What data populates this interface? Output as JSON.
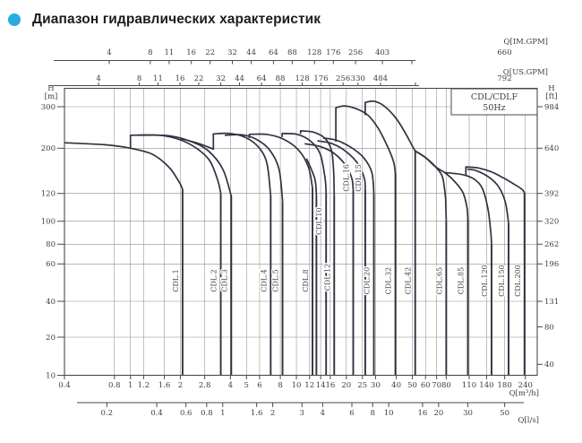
{
  "header": {
    "title": "Диапазон гидравлических характеристик",
    "bullet_color": "#29abe2"
  },
  "chart_data": {
    "type": "area",
    "title": "CDL/CDLF 50Hz",
    "legend_box": {
      "line1": "CDL/CDLF",
      "line2": "50Hz"
    },
    "axes": {
      "left": {
        "name": "H",
        "unit": "[m]",
        "ticks": [
          300,
          200,
          120,
          100,
          80,
          60,
          40,
          20,
          10
        ],
        "range": [
          10,
          350
        ],
        "scale": "log-piecewise"
      },
      "right": {
        "name": "H",
        "unit": "[ft]",
        "ticks": [
          {
            "v": 984,
            "at_m": 300
          },
          {
            "v": 640,
            "at_m": 200
          },
          {
            "v": 392,
            "at_m": 120
          },
          {
            "v": 320,
            "at_m": 100
          },
          {
            "v": 262,
            "at_m": 80
          },
          {
            "v": 196,
            "at_m": 60
          },
          {
            "v": 131,
            "at_m": 40
          },
          {
            "v": 80,
            "at_m": 24.4
          },
          {
            "v": 40,
            "at_m": 12.2
          }
        ]
      },
      "bottom_m3h": {
        "label": "Q[m³/h]",
        "range": [
          0.4,
          282
        ],
        "scale": "log",
        "ticks": [
          0.4,
          0.8,
          1,
          1.2,
          1.6,
          2,
          2.8,
          4,
          5,
          6,
          8,
          10,
          12,
          14,
          16,
          20,
          25,
          30,
          40,
          50,
          60,
          70,
          80,
          110,
          140,
          180,
          240
        ]
      },
      "bottom_ls": {
        "label": "Q[l/s]",
        "ticks": [
          0.2,
          0.4,
          0.6,
          0.8,
          1,
          1.6,
          2,
          3,
          4,
          6,
          8,
          10,
          16,
          20,
          30,
          50
        ]
      },
      "top_im_gpm": {
        "label": "Q[IM.GPM]",
        "ticks": [
          4,
          8,
          11,
          16,
          22,
          32,
          44,
          64,
          88,
          128,
          176,
          256,
          403
        ],
        "end_value": 660
      },
      "top_us_gpm": {
        "label": "Q[US.GPM]",
        "ticks": [
          4,
          8,
          11,
          16,
          22,
          32,
          44,
          64,
          88,
          128,
          176,
          256,
          330,
          484
        ],
        "end_value": 792
      }
    },
    "models": [
      {
        "label": "CDL.1",
        "q_max": 2.06,
        "label_h": 50,
        "envelope": [
          [
            0.4,
            211
          ],
          [
            0.7,
            207
          ],
          [
            1.0,
            200
          ],
          [
            1.35,
            187
          ],
          [
            1.7,
            162
          ],
          [
            1.95,
            138
          ],
          [
            2.06,
            126
          ]
        ]
      },
      {
        "label": "CDL.2",
        "q_max": 3.5,
        "label_h": 50,
        "envelope": [
          [
            1.0,
            200
          ],
          [
            1.0,
            227
          ],
          [
            1.5,
            227
          ],
          [
            2.0,
            217
          ],
          [
            2.5,
            200
          ],
          [
            3.0,
            174
          ],
          [
            3.35,
            140
          ],
          [
            3.5,
            120
          ]
        ]
      },
      {
        "label": "CDL.3",
        "q_max": 4.05,
        "label_h": 50,
        "envelope": [
          [
            1.1,
            227
          ],
          [
            1.7,
            226
          ],
          [
            2.3,
            214
          ],
          [
            2.95,
            194
          ],
          [
            3.6,
            158
          ],
          [
            4.05,
            118
          ]
        ]
      },
      {
        "label": "CDL.4",
        "q_max": 7.0,
        "label_h": 50,
        "envelope": [
          [
            2.0,
            220
          ],
          [
            2.6,
            209
          ],
          [
            3.16,
            198
          ],
          [
            3.16,
            230
          ],
          [
            3.95,
            231
          ],
          [
            4.95,
            222
          ],
          [
            5.95,
            201
          ],
          [
            6.65,
            168
          ],
          [
            7.0,
            118
          ]
        ]
      },
      {
        "label": "CDL.5",
        "q_max": 8.25,
        "label_h": 50,
        "envelope": [
          [
            3.7,
            227
          ],
          [
            4.7,
            228
          ],
          [
            5.75,
            218
          ],
          [
            6.9,
            196
          ],
          [
            7.85,
            158
          ],
          [
            8.25,
            114
          ]
        ]
      },
      {
        "label": "CDL.8",
        "q_max": 12.5,
        "label_h": 50,
        "envelope": [
          [
            5.2,
            221
          ],
          [
            5.2,
            229
          ],
          [
            6.6,
            229
          ],
          [
            8.3,
            219
          ],
          [
            10.3,
            196
          ],
          [
            11.8,
            162
          ],
          [
            12.5,
            128
          ]
        ]
      },
      {
        "label": "CDL.10",
        "q_max": 15.1,
        "label_h": 100,
        "envelope": [
          [
            8.2,
            223
          ],
          [
            8.2,
            231
          ],
          [
            10.1,
            229
          ],
          [
            12.1,
            215
          ],
          [
            13.9,
            188
          ],
          [
            14.9,
            142
          ],
          [
            15.1,
            120
          ]
        ]
      },
      {
        "label": "CDL.12",
        "q_max": 16.9,
        "label_h": 52,
        "envelope": [
          [
            10.6,
            230
          ],
          [
            10.6,
            237
          ],
          [
            12.7,
            234
          ],
          [
            14.9,
            220
          ],
          [
            16.3,
            194
          ],
          [
            16.8,
            150
          ],
          [
            16.9,
            118
          ]
        ]
      },
      {
        "label": "CDL.16",
        "q_max": 22,
        "label_h": 143,
        "envelope": [
          [
            11.2,
            209
          ],
          [
            14,
            203
          ],
          [
            17,
            188
          ],
          [
            19.8,
            165
          ],
          [
            21.6,
            142
          ],
          [
            22,
            124
          ]
        ]
      },
      {
        "label": "CDL.15",
        "q_max": 26,
        "label_h": 143,
        "envelope": [
          [
            13.4,
            215
          ],
          [
            16.5,
            209
          ],
          [
            20,
            192
          ],
          [
            23.6,
            167
          ],
          [
            25.7,
            142
          ],
          [
            26,
            126
          ]
        ]
      },
      {
        "label": "CDL.20",
        "q_max": 29.3,
        "label_h": 50,
        "envelope": [
          [
            14.5,
            221
          ],
          [
            17.5,
            216
          ],
          [
            21.5,
            201
          ],
          [
            25.5,
            179
          ],
          [
            28.5,
            152
          ],
          [
            29.3,
            120
          ]
        ]
      },
      {
        "label": "CDL.32",
        "q_max": 39.5,
        "label_h": 50,
        "envelope": [
          [
            17.3,
            213
          ],
          [
            17.3,
            297
          ],
          [
            19.5,
            302
          ],
          [
            23,
            294
          ],
          [
            27,
            276
          ],
          [
            31,
            244
          ],
          [
            35,
            207
          ],
          [
            38.5,
            172
          ],
          [
            39.5,
            150
          ]
        ]
      },
      {
        "label": "CDL.42",
        "q_max": 52,
        "label_h": 50,
        "envelope": [
          [
            26,
            276
          ],
          [
            26,
            311
          ],
          [
            29.5,
            314
          ],
          [
            34,
            301
          ],
          [
            40,
            267
          ],
          [
            46,
            228
          ],
          [
            50,
            204
          ],
          [
            52,
            194
          ]
        ]
      },
      {
        "label": "CDL.65",
        "q_max": 80,
        "label_h": 50,
        "envelope": [
          [
            52,
            194
          ],
          [
            60,
            180
          ],
          [
            69,
            162
          ],
          [
            76,
            144
          ],
          [
            79.3,
            116
          ],
          [
            80,
            100
          ]
        ]
      },
      {
        "label": "CDL.85",
        "q_max": 108,
        "label_h": 50,
        "envelope": [
          [
            52,
            194
          ],
          [
            60,
            180
          ],
          [
            69,
            162
          ],
          [
            80,
            150
          ],
          [
            91,
            136
          ],
          [
            101,
            121
          ],
          [
            106.5,
            110
          ],
          [
            108,
            102
          ]
        ]
      },
      {
        "label": "CDL.120",
        "q_max": 150,
        "label_h": 50,
        "envelope": [
          [
            78,
            152
          ],
          [
            92,
            150
          ],
          [
            105,
            147
          ],
          [
            118,
            141
          ],
          [
            132,
            127
          ],
          [
            143,
            108
          ],
          [
            149,
            88
          ],
          [
            150,
            80
          ]
        ]
      },
      {
        "label": "CDL.150",
        "q_max": 190,
        "label_h": 50,
        "envelope": [
          [
            107,
            158
          ],
          [
            122,
            155
          ],
          [
            145,
            144
          ],
          [
            166,
            129
          ],
          [
            182,
            113
          ],
          [
            190,
            98
          ]
        ]
      },
      {
        "label": "CDL.200",
        "q_max": 237,
        "label_h": 50,
        "envelope": [
          [
            105,
            147
          ],
          [
            105,
            162
          ],
          [
            125,
            160
          ],
          [
            150,
            153
          ],
          [
            177,
            143
          ],
          [
            206,
            133
          ],
          [
            228,
            126
          ],
          [
            237,
            121
          ]
        ]
      }
    ],
    "extra_boundary_lines": [
      {
        "q": 13.2,
        "envelope": [
          [
            11.5,
            178
          ],
          [
            12.9,
            142
          ],
          [
            13.2,
            118
          ]
        ]
      }
    ],
    "colors": {
      "curve": "#2e3340",
      "grid": "#8d8d8d",
      "frame": "#4a4a4a",
      "text": "#3f3f3f"
    }
  }
}
